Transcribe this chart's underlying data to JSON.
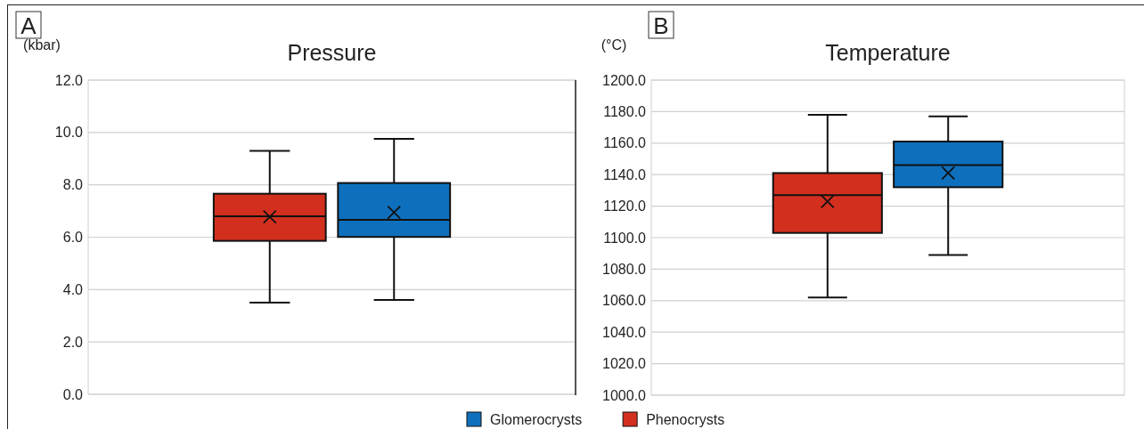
{
  "chart_data": [
    {
      "type": "box",
      "title": "Pressure",
      "ylabel": "(kbar)",
      "annotations": [
        "A"
      ],
      "categories": [
        null
      ],
      "ylim": [
        0,
        12
      ],
      "yticks": [
        {
          "value": 0,
          "label": "0.0"
        },
        {
          "value": 2,
          "label": "2.0"
        },
        {
          "value": 4,
          "label": "4.0"
        },
        {
          "value": 6,
          "label": "6.0"
        },
        {
          "value": 8,
          "label": "8.0"
        },
        {
          "value": 10,
          "label": "10.0"
        },
        {
          "value": 12,
          "label": "12.0"
        }
      ],
      "grid": "y",
      "legend": "bottom",
      "marker": "cross",
      "series": [
        {
          "name": "Phenocrysts",
          "color": "#d22f1f",
          "boxes": [
            {
              "low": 3.5,
              "q1": 5.86,
              "median": 6.8,
              "q3": 7.66,
              "high": 9.3,
              "mean": 6.78
            }
          ]
        },
        {
          "name": "Glomerocrysts",
          "color": "#0e70bd",
          "boxes": [
            {
              "low": 3.6,
              "q1": 6.01,
              "median": 6.66,
              "q3": 8.07,
              "high": 9.76,
              "mean": 6.95
            }
          ]
        }
      ]
    },
    {
      "type": "box",
      "title": "Temperature",
      "ylabel": "(°C)",
      "annotations": [
        "B"
      ],
      "categories": [
        null
      ],
      "ylim": [
        1000,
        1200
      ],
      "yticks": [
        {
          "value": 1000,
          "label": "1000.0"
        },
        {
          "value": 1020,
          "label": "1020.0"
        },
        {
          "value": 1040,
          "label": "1040.0"
        },
        {
          "value": 1060,
          "label": "1060.0"
        },
        {
          "value": 1080,
          "label": "1080.0"
        },
        {
          "value": 1100,
          "label": "1100.0"
        },
        {
          "value": 1120,
          "label": "1120.0"
        },
        {
          "value": 1140,
          "label": "1140.0"
        },
        {
          "value": 1160,
          "label": "1160.0"
        },
        {
          "value": 1180,
          "label": "1180.0"
        },
        {
          "value": 1200,
          "label": "1200.0"
        }
      ],
      "grid": "y",
      "marker": "cross",
      "series": [
        {
          "color": "#d22f1f",
          "boxes": [
            {
              "low": 1062,
              "q1": 1103,
              "median": 1127,
              "q3": 1141,
              "high": 1178,
              "mean": 1123
            }
          ]
        },
        {
          "color": "#0e70bd",
          "boxes": [
            {
              "low": 1089,
              "q1": 1132,
              "median": 1146,
              "q3": 1161,
              "high": 1177,
              "mean": 1141
            }
          ]
        }
      ]
    }
  ]
}
